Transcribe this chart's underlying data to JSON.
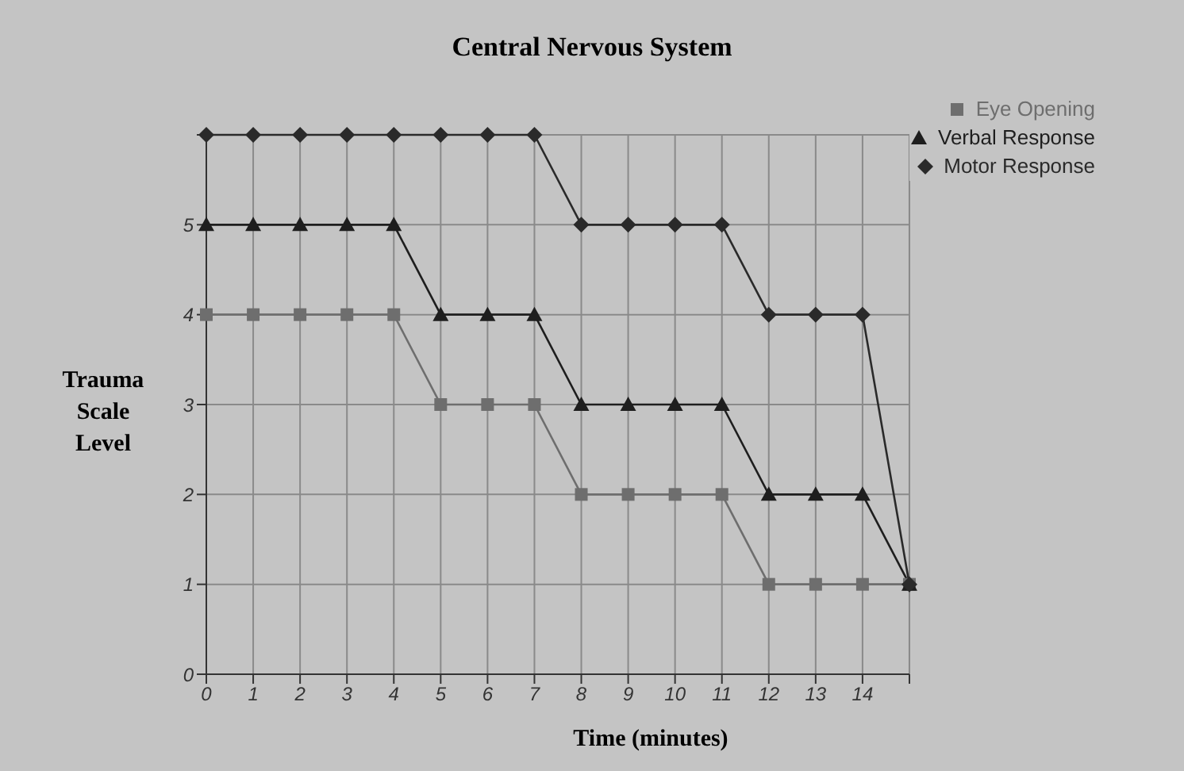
{
  "chart_data": {
    "type": "line",
    "title": "Central Nervous System",
    "xlabel": "Time (minutes)",
    "ylabel": "Trauma Scale Level",
    "x": [
      0,
      1,
      2,
      3,
      4,
      5,
      6,
      7,
      8,
      9,
      10,
      11,
      12,
      13,
      14,
      15
    ],
    "series": [
      {
        "name": "Eye Opening",
        "color": "#6e6e6e",
        "marker": "square",
        "values": [
          4,
          4,
          4,
          4,
          4,
          3,
          3,
          3,
          2,
          2,
          2,
          2,
          1,
          1,
          1,
          1
        ]
      },
      {
        "name": "Verbal Response",
        "color": "#1e1e1e",
        "marker": "triangle",
        "values": [
          5,
          5,
          5,
          5,
          5,
          4,
          4,
          4,
          3,
          3,
          3,
          3,
          2,
          2,
          2,
          1
        ]
      },
      {
        "name": "Motor Response",
        "color": "#2a2a2a",
        "marker": "diamond",
        "values": [
          6,
          6,
          6,
          6,
          6,
          6,
          6,
          6,
          5,
          5,
          5,
          5,
          4,
          4,
          4,
          1
        ]
      }
    ],
    "xlim": [
      0,
      15
    ],
    "xticks": [
      0,
      1,
      2,
      3,
      4,
      5,
      6,
      7,
      8,
      9,
      10,
      11,
      12,
      13,
      14,
      {
        "value": 15,
        "label": null
      }
    ],
    "ylim": [
      0,
      6
    ],
    "yticks": [
      0,
      1,
      2,
      3,
      4,
      5,
      {
        "value": 6,
        "label": null
      }
    ],
    "grid": true,
    "legend": "top right",
    "line_style": "solid"
  }
}
